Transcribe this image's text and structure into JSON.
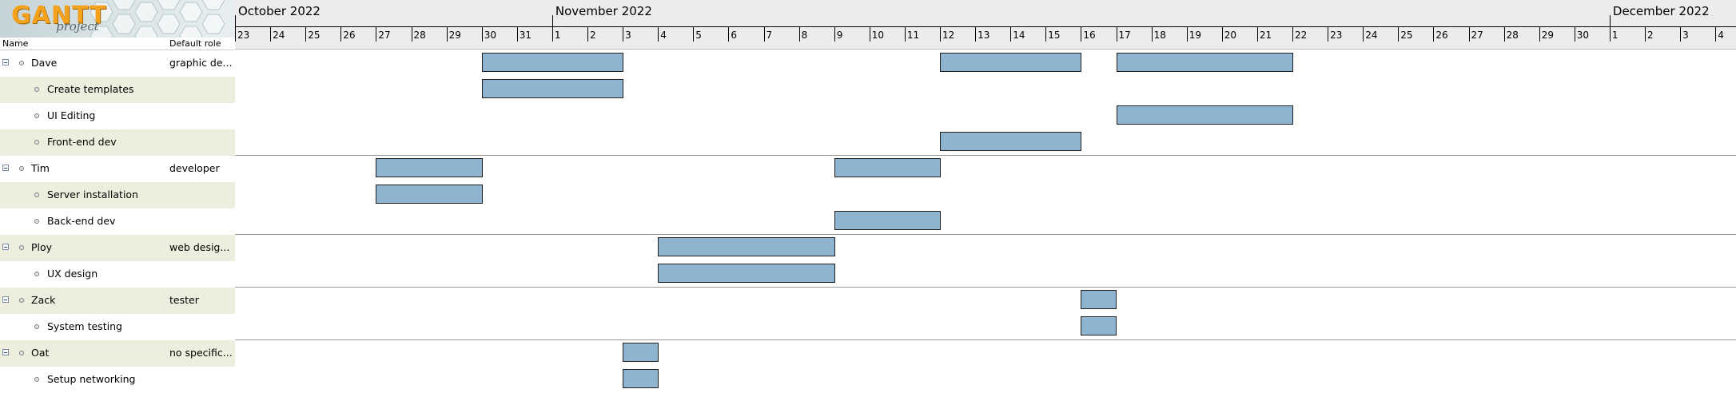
{
  "app": {
    "logo_main": "GANTT",
    "logo_sub": "project"
  },
  "tree": {
    "columns": {
      "name": "Name",
      "role": "Default role"
    },
    "rows": [
      {
        "name": "Dave",
        "role": "graphic de...",
        "level": 0
      },
      {
        "name": "Create templates",
        "role": "",
        "level": 1
      },
      {
        "name": "UI Editing",
        "role": "",
        "level": 1
      },
      {
        "name": "Front-end dev",
        "role": "",
        "level": 1
      },
      {
        "name": "Tim",
        "role": "developer",
        "level": 0
      },
      {
        "name": "Server installation",
        "role": "",
        "level": 1
      },
      {
        "name": "Back-end dev",
        "role": "",
        "level": 1
      },
      {
        "name": "Ploy",
        "role": "web desig...",
        "level": 0
      },
      {
        "name": "UX design",
        "role": "",
        "level": 1
      },
      {
        "name": "Zack",
        "role": "tester",
        "level": 0
      },
      {
        "name": "System testing",
        "role": "",
        "level": 1
      },
      {
        "name": "Oat",
        "role": "no specific...",
        "level": 0
      },
      {
        "name": "Setup networking",
        "role": "",
        "level": 1
      }
    ]
  },
  "timeline": {
    "months": [
      "October 2022",
      "November 2022",
      "December 2022"
    ],
    "days": [
      "23",
      "24",
      "25",
      "26",
      "27",
      "28",
      "29",
      "30",
      "31",
      "1",
      "2",
      "3",
      "4",
      "5",
      "6",
      "7",
      "8",
      "9",
      "10",
      "11",
      "12",
      "13",
      "14",
      "15",
      "16",
      "17",
      "18",
      "19",
      "20",
      "21",
      "22",
      "23",
      "24",
      "25",
      "26",
      "27",
      "28",
      "29",
      "30",
      "1",
      "2",
      "3",
      "4"
    ]
  },
  "bars": [
    {
      "row": 0,
      "start": 7,
      "end": 11
    },
    {
      "row": 0,
      "start": 20,
      "end": 24
    },
    {
      "row": 0,
      "start": 25,
      "end": 30
    },
    {
      "row": 1,
      "start": 7,
      "end": 11
    },
    {
      "row": 2,
      "start": 25,
      "end": 30
    },
    {
      "row": 3,
      "start": 20,
      "end": 24
    },
    {
      "row": 4,
      "start": 4,
      "end": 7
    },
    {
      "row": 4,
      "start": 17,
      "end": 20
    },
    {
      "row": 5,
      "start": 4,
      "end": 7
    },
    {
      "row": 6,
      "start": 17,
      "end": 20
    },
    {
      "row": 7,
      "start": 12,
      "end": 17
    },
    {
      "row": 8,
      "start": 12,
      "end": 17
    },
    {
      "row": 9,
      "start": 24,
      "end": 25
    },
    {
      "row": 10,
      "start": 24,
      "end": 25
    },
    {
      "row": 11,
      "start": 11,
      "end": 12
    },
    {
      "row": 12,
      "start": 11,
      "end": 12
    }
  ],
  "colors": {
    "bar_fill": "#8fb4cf",
    "alt_row": "#eeeedf",
    "logo_orange": "#f4a21d"
  }
}
